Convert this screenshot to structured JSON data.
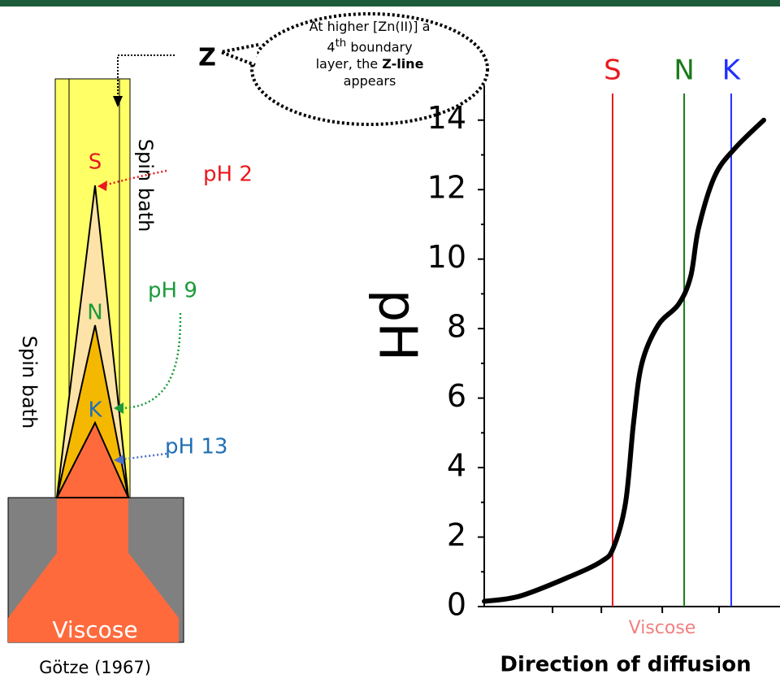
{
  "diagram": {
    "z_label": "Z",
    "callout": {
      "text1": "At higher [Zn(II)] a",
      "ordinal": "4",
      "ordinal_suffix": "th",
      "text2": "boundary",
      "text3": "layer, the",
      "bold": "Z-line",
      "text4": "appears"
    },
    "layers": [
      {
        "label": "S",
        "ph": "pH 2"
      },
      {
        "label": "N",
        "ph": "pH 9"
      },
      {
        "label": "K",
        "ph": "pH 13"
      }
    ],
    "spin_bath_inner": "Spin bath",
    "spin_bath_outer": "Spin bath",
    "viscose": "Viscose",
    "source": "Götze (1967)"
  },
  "chart_data": {
    "type": "line",
    "ylabel": "pH",
    "xlabel": "Direction of diffusion",
    "x_annotation": "Viscose",
    "x": [
      0,
      1.2,
      2.86,
      3.96,
      4.37,
      4.78,
      5.05,
      5.33,
      5.88,
      6.57,
      6.98,
      7.25,
      7.8,
      8.49,
      9.45
    ],
    "values": [
      0.15,
      0.3,
      0.85,
      1.3,
      1.7,
      3,
      5.3,
      7,
      8.1,
      8.7,
      9.5,
      10.9,
      12.4,
      13.2,
      14
    ],
    "color": "#000000",
    "xlim": [
      0,
      10
    ],
    "ylim": [
      0,
      15
    ],
    "yticks": [
      0,
      2,
      4,
      6,
      8,
      10,
      12,
      14
    ],
    "yminorticks": [
      1,
      3,
      5,
      7,
      9,
      11,
      13
    ],
    "xticks": [
      2.31,
      3.96,
      6.02,
      7.94
    ],
    "reference_lines": [
      {
        "label": "S",
        "x": 4.34,
        "color": "#e8191f"
      },
      {
        "label": "N",
        "x": 6.76,
        "color": "#1a7a1a"
      },
      {
        "label": "K",
        "x": 8.35,
        "color": "#1f2fff"
      }
    ]
  }
}
